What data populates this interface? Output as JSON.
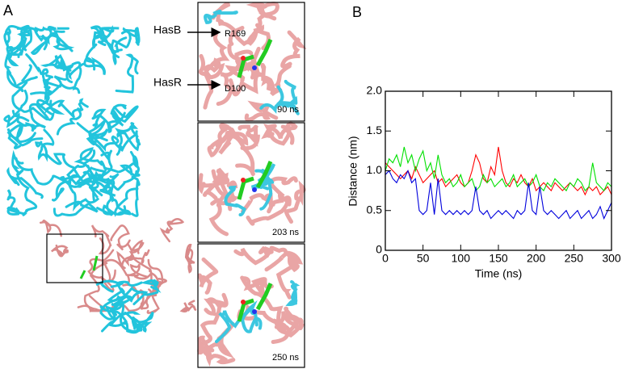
{
  "panel_a": {
    "label": "A",
    "annotations": [
      "HasB",
      "HasR"
    ],
    "residues": [
      "R169",
      "D100"
    ],
    "snapshots": [
      "90 ns",
      "203 ns",
      "250 ns"
    ]
  },
  "panel_b": {
    "label": "B"
  },
  "chart_data": {
    "type": "line",
    "xlabel": "Time (ns)",
    "ylabel": "Distance (nm)",
    "x": [
      0,
      5,
      10,
      15,
      20,
      25,
      30,
      35,
      40,
      45,
      50,
      55,
      60,
      65,
      70,
      75,
      80,
      85,
      90,
      95,
      100,
      105,
      110,
      115,
      120,
      125,
      130,
      135,
      140,
      145,
      150,
      155,
      160,
      165,
      170,
      175,
      180,
      185,
      190,
      195,
      200,
      205,
      210,
      215,
      220,
      225,
      230,
      235,
      240,
      245,
      250,
      255,
      260,
      265,
      270,
      275,
      280,
      285,
      290,
      295,
      300
    ],
    "series": [
      {
        "color": "#ff0000",
        "values": [
          1.1,
          1.05,
          1.0,
          0.95,
          0.9,
          0.95,
          1.0,
          0.9,
          1.05,
          0.95,
          0.85,
          0.9,
          0.95,
          1.0,
          0.85,
          0.9,
          0.8,
          0.85,
          0.9,
          0.95,
          0.85,
          0.8,
          0.85,
          1.0,
          1.2,
          1.1,
          0.9,
          0.85,
          1.05,
          0.95,
          1.3,
          1.0,
          0.85,
          0.8,
          0.9,
          0.85,
          0.95,
          0.85,
          0.8,
          0.9,
          0.75,
          0.8,
          0.85,
          0.8,
          0.75,
          0.85,
          0.8,
          0.75,
          0.8,
          0.85,
          0.8,
          0.75,
          0.8,
          0.7,
          0.8,
          0.75,
          0.8,
          0.7,
          0.75,
          0.8,
          0.7
        ]
      },
      {
        "color": "#00e000",
        "values": [
          1.0,
          1.15,
          1.1,
          1.2,
          1.05,
          1.3,
          1.1,
          1.2,
          1.0,
          1.15,
          1.25,
          1.0,
          1.1,
          0.9,
          1.2,
          0.95,
          0.85,
          0.9,
          0.8,
          0.85,
          0.95,
          0.8,
          0.85,
          0.9,
          0.75,
          0.8,
          0.95,
          0.85,
          0.9,
          0.8,
          0.85,
          0.9,
          0.8,
          0.85,
          0.95,
          0.8,
          0.85,
          0.9,
          0.8,
          0.85,
          0.95,
          0.8,
          0.75,
          0.85,
          0.8,
          0.9,
          0.85,
          0.8,
          0.75,
          0.85,
          0.8,
          0.9,
          0.85,
          0.75,
          0.8,
          1.1,
          0.85,
          0.8,
          0.75,
          0.85,
          0.8
        ]
      },
      {
        "color": "#0000dd",
        "values": [
          0.95,
          1.0,
          0.9,
          0.85,
          0.95,
          0.9,
          1.0,
          0.85,
          0.9,
          0.5,
          0.45,
          0.5,
          0.85,
          0.45,
          0.9,
          0.5,
          0.45,
          0.5,
          0.45,
          0.5,
          0.45,
          0.5,
          0.45,
          0.5,
          0.8,
          0.5,
          0.45,
          0.5,
          0.4,
          0.45,
          0.5,
          0.45,
          0.5,
          0.45,
          0.4,
          0.5,
          0.45,
          0.5,
          0.85,
          0.5,
          0.45,
          0.8,
          0.5,
          0.45,
          0.5,
          0.45,
          0.4,
          0.45,
          0.5,
          0.4,
          0.45,
          0.5,
          0.4,
          0.45,
          0.5,
          0.4,
          0.45,
          0.55,
          0.4,
          0.5,
          0.6
        ]
      }
    ],
    "xlim": [
      0,
      300
    ],
    "xticks": [
      0,
      50,
      100,
      150,
      200,
      250,
      300
    ],
    "ylim": [
      0,
      2.0
    ],
    "yticks": [
      0,
      0.5,
      {
        "value": 1.0,
        "label": "1.0"
      },
      1.5,
      {
        "value": 2.0,
        "label": "2.0"
      }
    ]
  }
}
